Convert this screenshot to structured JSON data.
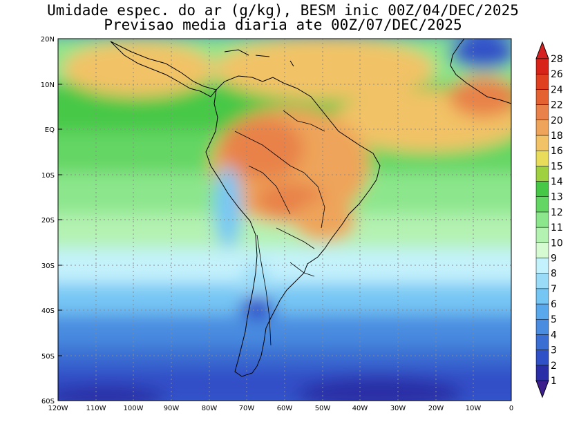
{
  "title": {
    "line1": "Umidade espec. do ar (g/kg), BESM inic 00Z/04/DEC/2025",
    "line2": "Previsao media diaria ate 00Z/07/DEC/2025"
  },
  "map": {
    "lat_labels": [
      "20N",
      "10N",
      "EQ",
      "10S",
      "20S",
      "30S",
      "40S",
      "50S",
      "60S"
    ],
    "lon_labels": [
      "120W",
      "110W",
      "100W",
      "90W",
      "80W",
      "70W",
      "60W",
      "50W",
      "40W",
      "30W",
      "20W",
      "10W",
      "0"
    ]
  },
  "colorbar": {
    "levels": [
      "1",
      "2",
      "3",
      "4",
      "5",
      "6",
      "7",
      "8",
      "9",
      "10",
      "11",
      "12",
      "13",
      "14",
      "15",
      "16",
      "18",
      "20",
      "22",
      "24",
      "26",
      "28"
    ],
    "colors": [
      "#3c1e8c",
      "#2a2ea6",
      "#3050c8",
      "#3a6ed2",
      "#4a8ce0",
      "#5aa8ec",
      "#76c6f4",
      "#9adcf8",
      "#c4f2fc",
      "#d6fad2",
      "#b4f2b2",
      "#8ce68c",
      "#64d664",
      "#46c846",
      "#9ed040",
      "#e8dc5a",
      "#f2c266",
      "#eea45a",
      "#e8824a",
      "#e46232",
      "#e04020",
      "#d82418",
      "#d42020"
    ]
  }
}
